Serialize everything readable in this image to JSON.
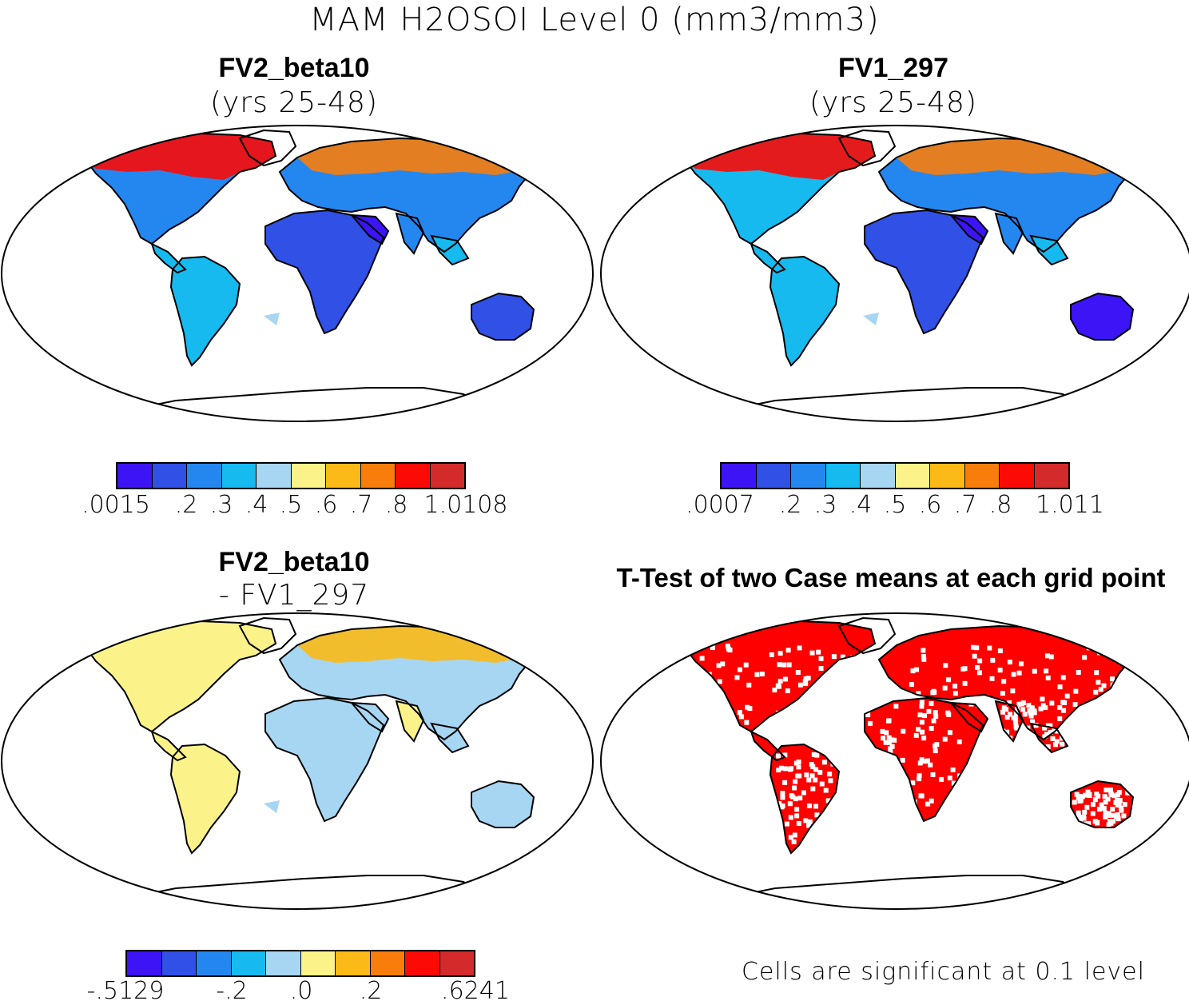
{
  "figure": {
    "title": "MAM H2OSOI Level 0 (mm3/mm3)"
  },
  "colors": {
    "levels": [
      "#3c14f5",
      "#3050e6",
      "#2487f0",
      "#16baef",
      "#a6d6f2",
      "#fbf38a",
      "#fbba17",
      "#f97d0b",
      "#fb0a06",
      "#d32b2b"
    ],
    "significant": "#ff0000",
    "ocean": "#ffffff",
    "outline": "#000000"
  },
  "panels": [
    {
      "id": "case1",
      "title": "FV2_beta10",
      "subtitle": "(yrs 25-48)",
      "colorbar": {
        "labels": [
          ".0015",
          ".2",
          ".3",
          ".4",
          ".5",
          ".6",
          ".7",
          ".8",
          "1.0108"
        ]
      }
    },
    {
      "id": "case2",
      "title": "FV1_297",
      "subtitle": "(yrs 25-48)",
      "colorbar": {
        "labels": [
          ".0007",
          ".2",
          ".3",
          ".4",
          ".5",
          ".6",
          ".7",
          ".8",
          "1.011"
        ]
      }
    },
    {
      "id": "diff",
      "title": "FV2_beta10",
      "subtitle": "- FV1_297",
      "colorbar": {
        "labels": [
          "-.5129",
          "-.2",
          ".0",
          ".2",
          ".6241"
        ]
      }
    },
    {
      "id": "ttest",
      "title": "T-Test of two Case means at each grid point",
      "note": "Cells are significant at 0.1 level"
    }
  ]
}
